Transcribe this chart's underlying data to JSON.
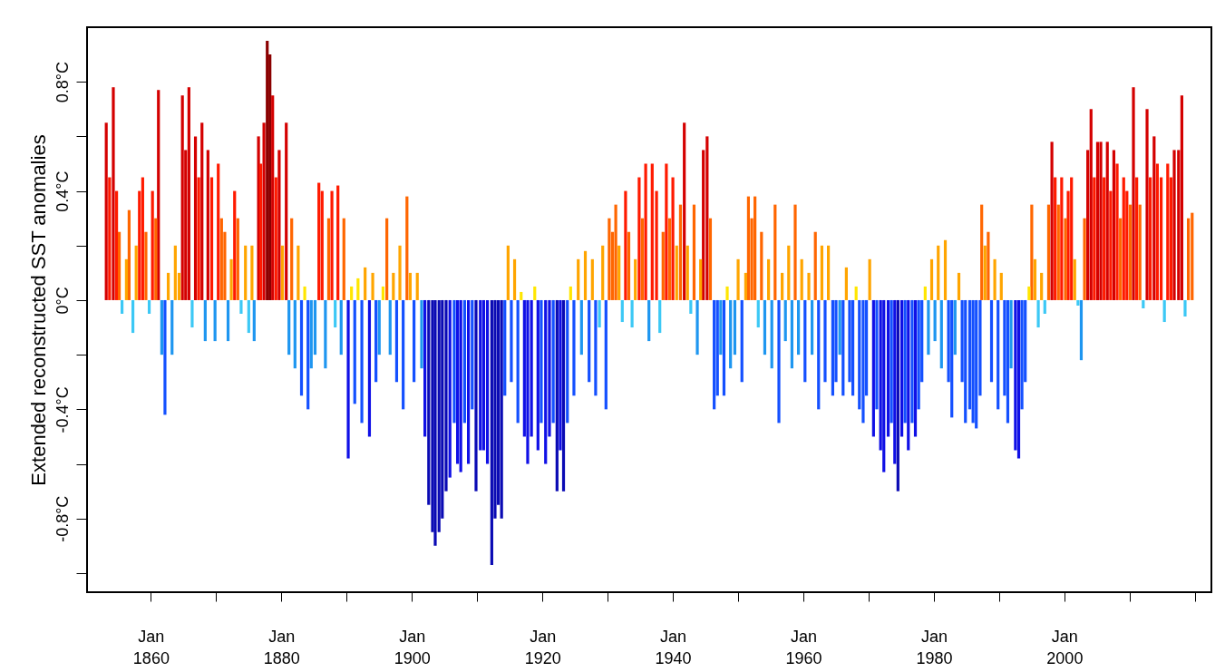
{
  "chart_data": {
    "type": "bar",
    "ylabel": "Extended reconstructed SST anomalies",
    "xlim": [
      "1850-12",
      "2021-11"
    ],
    "xticks": [
      {
        "value": "1860-01",
        "label": "Jan 1860"
      },
      {
        "value": "1870-01",
        "label": null
      },
      {
        "value": "1880-01",
        "label": "Jan 1880"
      },
      {
        "value": "1890-01",
        "label": null
      },
      {
        "value": "1900-01",
        "label": "Jan 1900"
      },
      {
        "value": "1910-01",
        "label": null
      },
      {
        "value": "1920-01",
        "label": "Jan 1920"
      },
      {
        "value": "1930-01",
        "label": null
      },
      {
        "value": "1940-01",
        "label": "Jan 1940"
      },
      {
        "value": "1950-01",
        "label": null
      },
      {
        "value": "1960-01",
        "label": "Jan 1960"
      },
      {
        "value": "1970-01",
        "label": null
      },
      {
        "value": "1980-01",
        "label": "Jan 1980"
      },
      {
        "value": "1990-01",
        "label": null
      },
      {
        "value": "2000-01",
        "label": "Jan 2000"
      },
      {
        "value": "2010-01",
        "label": null
      },
      {
        "value": "2020-01",
        "label": null
      }
    ],
    "ylim": [
      -1.07,
      1.0
    ],
    "yticks": [
      {
        "value": -1.0,
        "label": null
      },
      {
        "value": -0.8,
        "label": "-0.8°C"
      },
      {
        "value": -0.6,
        "label": null
      },
      {
        "value": -0.4,
        "label": "-0.4°C"
      },
      {
        "value": -0.2,
        "label": null
      },
      {
        "value": 0,
        "label": "0°C"
      },
      {
        "value": 0.2,
        "label": null
      },
      {
        "value": 0.4,
        "label": "0.4°C"
      },
      {
        "value": 0.6,
        "label": null
      },
      {
        "value": 0.8,
        "label": "0.8°C"
      }
    ],
    "grid": false,
    "legend": false,
    "series": [
      {
        "color": "#8b0000",
        "x": [
          "1877-11",
          "1878-04"
        ],
        "values": [
          0.95,
          0.9
        ]
      },
      {
        "color": "#d40000",
        "x": [
          "1853-03",
          "1854-04",
          "1861-03",
          "1864-11",
          "1865-05",
          "1865-11",
          "1866-11",
          "1867-11",
          "1868-10",
          "1876-07",
          "1877-05",
          "1878-09",
          "1879-09",
          "1880-10",
          "1941-10",
          "1944-09",
          "1945-04",
          "1998-02",
          "2003-08",
          "2004-02",
          "2005-02",
          "2005-08",
          "2006-08",
          "2007-08",
          "2010-08",
          "2012-09",
          "2013-10",
          "2016-11",
          "2017-07",
          "2018-01"
        ],
        "values": [
          0.65,
          0.78,
          0.77,
          0.75,
          0.55,
          0.78,
          0.6,
          0.65,
          0.55,
          0.6,
          0.65,
          0.75,
          0.55,
          0.65,
          0.65,
          0.55,
          0.6,
          0.58,
          0.55,
          0.7,
          0.58,
          0.58,
          0.58,
          0.55,
          0.78,
          0.7,
          0.6,
          0.55,
          0.55,
          0.75
        ]
      },
      {
        "color": "#ff1a00",
        "x": [
          "1853-09",
          "1854-10",
          "1858-04",
          "1858-10",
          "1860-04",
          "1867-05",
          "1869-05",
          "1870-05",
          "1872-11",
          "1876-11",
          "1879-03",
          "1885-10",
          "1886-04",
          "1887-10",
          "1888-09",
          "1932-10",
          "1934-11",
          "1935-11",
          "1936-11",
          "1937-07",
          "1939-01",
          "1940-01",
          "1998-08",
          "1999-08",
          "2000-08",
          "2001-02",
          "2004-08",
          "2006-02",
          "2007-02",
          "2008-02",
          "2009-02",
          "2009-08",
          "2011-02",
          "2013-03",
          "2014-04",
          "2014-11",
          "2015-11",
          "2016-05"
        ],
        "values": [
          0.45,
          0.4,
          0.4,
          0.45,
          0.4,
          0.45,
          0.45,
          0.5,
          0.4,
          0.5,
          0.45,
          0.43,
          0.4,
          0.4,
          0.42,
          0.4,
          0.45,
          0.5,
          0.5,
          0.4,
          0.5,
          0.45,
          0.45,
          0.45,
          0.4,
          0.45,
          0.45,
          0.45,
          0.4,
          0.5,
          0.45,
          0.4,
          0.45,
          0.45,
          0.5,
          0.45,
          0.5,
          0.45
        ]
      },
      {
        "color": "#ff6600",
        "x": [
          "1855-03",
          "1856-09",
          "1859-04",
          "1860-10",
          "1870-11",
          "1871-05",
          "1873-05",
          "1881-08",
          "1887-04",
          "1889-08",
          "1896-03",
          "1899-04",
          "1930-04",
          "1930-10",
          "1931-04",
          "1933-04",
          "1935-05",
          "1938-07",
          "1939-07",
          "1941-03",
          "1943-04",
          "1945-10",
          "1951-08",
          "1952-02",
          "1952-08",
          "1953-08",
          "1955-09",
          "1958-10",
          "1961-11",
          "1987-05",
          "1988-05",
          "1995-01",
          "1997-08",
          "1999-02",
          "2000-03",
          "2003-02",
          "2008-08",
          "2010-02",
          "2011-08",
          "2019-01",
          "2019-08"
        ],
        "values": [
          0.25,
          0.33,
          0.25,
          0.3,
          0.3,
          0.25,
          0.3,
          0.3,
          0.3,
          0.3,
          0.3,
          0.38,
          0.3,
          0.25,
          0.35,
          0.25,
          0.3,
          0.25,
          0.3,
          0.35,
          0.35,
          0.3,
          0.38,
          0.3,
          0.38,
          0.25,
          0.35,
          0.35,
          0.25,
          0.35,
          0.25,
          0.35,
          0.35,
          0.35,
          0.3,
          0.3,
          0.3,
          0.35,
          0.35,
          0.3,
          0.32
        ]
      },
      {
        "color": "#ffa500",
        "x": [
          "1856-04",
          "1857-10",
          "1862-09",
          "1863-10",
          "1864-05",
          "1872-05",
          "1874-07",
          "1875-07",
          "1880-03",
          "1882-08",
          "1892-11",
          "1894-01",
          "1897-03",
          "1898-03",
          "1899-10",
          "1900-11",
          "1914-10",
          "1915-10",
          "1925-07",
          "1926-08",
          "1927-09",
          "1929-04",
          "1931-10",
          "1934-04",
          "1940-08",
          "1942-04",
          "1944-04",
          "1950-01",
          "1951-03",
          "1954-09",
          "1956-10",
          "1957-10",
          "1959-10",
          "1960-11",
          "1962-11",
          "1963-11",
          "1966-08",
          "1970-03",
          "1979-09",
          "1980-09",
          "1981-10",
          "1983-11",
          "1987-11",
          "1989-05",
          "1990-05",
          "1995-07",
          "1996-07",
          "2001-08"
        ],
        "values": [
          0.15,
          0.2,
          0.1,
          0.2,
          0.1,
          0.15,
          0.2,
          0.2,
          0.2,
          0.2,
          0.12,
          0.1,
          0.1,
          0.2,
          0.1,
          0.1,
          0.2,
          0.15,
          0.15,
          0.18,
          0.15,
          0.2,
          0.2,
          0.15,
          0.2,
          0.2,
          0.15,
          0.15,
          0.1,
          0.15,
          0.1,
          0.2,
          0.15,
          0.1,
          0.2,
          0.2,
          0.12,
          0.15,
          0.15,
          0.2,
          0.22,
          0.1,
          0.2,
          0.15,
          0.1,
          0.15,
          0.1,
          0.15
        ]
      },
      {
        "color": "#ffe600",
        "x": [
          "1883-08",
          "1890-10",
          "1891-10",
          "1895-08",
          "1916-10",
          "1918-11",
          "1924-05",
          "1948-05",
          "1968-02",
          "1978-09",
          "1994-08"
        ],
        "values": [
          0.05,
          0.05,
          0.08,
          0.05,
          0.03,
          0.05,
          0.05,
          0.05,
          0.05,
          0.05,
          0.05
        ]
      },
      {
        "color": "#3cc8f5",
        "x": [
          "1855-08",
          "1857-04",
          "1859-10",
          "1866-05",
          "1873-11",
          "1875-01",
          "1888-04",
          "1928-10",
          "1932-04",
          "1933-10",
          "1938-01",
          "1942-10",
          "1953-02",
          "1996-01",
          "1997-01",
          "2002-02",
          "2012-02",
          "2015-05",
          "2018-07"
        ],
        "values": [
          -0.05,
          -0.12,
          -0.05,
          -0.1,
          -0.05,
          -0.12,
          -0.1,
          -0.1,
          -0.08,
          -0.1,
          -0.12,
          -0.05,
          -0.1,
          -0.1,
          -0.05,
          -0.02,
          -0.03,
          -0.08,
          -0.06
        ]
      },
      {
        "color": "#1e96f0",
        "x": [
          "1861-09",
          "1863-04",
          "1868-05",
          "1869-11",
          "1871-11",
          "1875-11",
          "1881-03",
          "1882-02",
          "1884-08",
          "1885-03",
          "1886-10",
          "1889-03",
          "1895-01",
          "1896-09",
          "1901-07",
          "1926-01",
          "1936-05",
          "1943-10",
          "1947-05",
          "1948-11",
          "1949-07",
          "1954-02",
          "1955-03",
          "1957-04",
          "1958-04",
          "1959-04",
          "1961-05",
          "1965-08",
          "1979-03",
          "1980-03",
          "1981-03",
          "1983-04",
          "1991-11",
          "2002-08"
        ],
        "values": [
          -0.2,
          -0.2,
          -0.15,
          -0.15,
          -0.15,
          -0.15,
          -0.2,
          -0.25,
          -0.25,
          -0.2,
          -0.25,
          -0.2,
          -0.2,
          -0.2,
          -0.25,
          -0.2,
          -0.15,
          -0.2,
          -0.2,
          -0.25,
          -0.2,
          -0.2,
          -0.25,
          -0.15,
          -0.25,
          -0.2,
          -0.2,
          -0.2,
          -0.2,
          -0.15,
          -0.25,
          -0.2,
          -0.25,
          -0.22
        ]
      },
      {
        "color": "#1450ff",
        "x": [
          "1862-03",
          "1883-02",
          "1884-02",
          "1891-04",
          "1892-05",
          "1894-07",
          "1897-09",
          "1898-09",
          "1900-05",
          "1906-07",
          "1908-02",
          "1909-04",
          "1914-04",
          "1915-04",
          "1916-04",
          "1919-11",
          "1921-09",
          "1923-11",
          "1924-11",
          "1927-03",
          "1928-03",
          "1929-10",
          "1946-05",
          "1946-11",
          "1947-11",
          "1950-08",
          "1956-04",
          "1960-04",
          "1962-05",
          "1963-05",
          "1964-07",
          "1965-01",
          "1966-02",
          "1967-02",
          "1967-08",
          "1968-08",
          "1969-03",
          "1969-09",
          "1971-04",
          "1973-07",
          "1975-08",
          "1976-09",
          "1977-09",
          "1978-03",
          "1982-04",
          "1982-10",
          "1984-05",
          "1984-11",
          "1985-07",
          "1986-01",
          "1986-07",
          "1987-02",
          "1988-11",
          "1989-11",
          "1990-11",
          "1991-05",
          "1993-07",
          "1994-01"
        ],
        "values": [
          -0.42,
          -0.35,
          -0.4,
          -0.38,
          -0.45,
          -0.3,
          -0.3,
          -0.4,
          -0.3,
          -0.45,
          -0.45,
          -0.4,
          -0.35,
          -0.3,
          -0.45,
          -0.45,
          -0.45,
          -0.45,
          -0.35,
          -0.3,
          -0.35,
          -0.4,
          -0.4,
          -0.35,
          -0.35,
          -0.3,
          -0.45,
          -0.3,
          -0.4,
          -0.3,
          -0.35,
          -0.3,
          -0.35,
          -0.3,
          -0.35,
          -0.4,
          -0.45,
          -0.35,
          -0.4,
          -0.45,
          -0.45,
          -0.45,
          -0.4,
          -0.3,
          -0.3,
          -0.43,
          -0.3,
          -0.45,
          -0.4,
          -0.45,
          -0.47,
          -0.35,
          -0.3,
          -0.4,
          -0.35,
          -0.45,
          -0.4,
          -0.3
        ]
      },
      {
        "color": "#1010e6",
        "x": [
          "1890-04",
          "1893-07",
          "1902-01",
          "1905-11",
          "1907-01",
          "1907-07",
          "1908-09",
          "1910-07",
          "1911-01",
          "1911-08",
          "1917-04",
          "1917-10",
          "1918-05",
          "1919-05",
          "1920-07",
          "1921-02",
          "1922-10",
          "1970-10",
          "1971-11",
          "1972-05",
          "1973-01",
          "1974-01",
          "1975-02",
          "1976-02",
          "1977-03",
          "1992-07",
          "1993-01"
        ],
        "values": [
          -0.58,
          -0.5,
          -0.5,
          -0.65,
          -0.6,
          -0.63,
          -0.6,
          -0.55,
          -0.55,
          -0.6,
          -0.5,
          -0.6,
          -0.5,
          -0.55,
          -0.6,
          -0.5,
          -0.55,
          -0.5,
          -0.55,
          -0.63,
          -0.5,
          -0.6,
          -0.5,
          -0.55,
          -0.5,
          -0.55,
          -0.58
        ]
      },
      {
        "color": "#0a0ab4",
        "x": [
          "1902-08",
          "1903-03",
          "1903-08",
          "1904-03",
          "1904-09",
          "1905-04",
          "1909-11",
          "1912-04",
          "1912-10",
          "1913-04",
          "1913-10",
          "1922-04",
          "1923-04",
          "1974-07"
        ],
        "values": [
          -0.75,
          -0.85,
          -0.9,
          -0.85,
          -0.8,
          -0.7,
          -0.7,
          -0.97,
          -0.8,
          -0.75,
          -0.8,
          -0.7,
          -0.7,
          -0.7
        ]
      }
    ]
  }
}
